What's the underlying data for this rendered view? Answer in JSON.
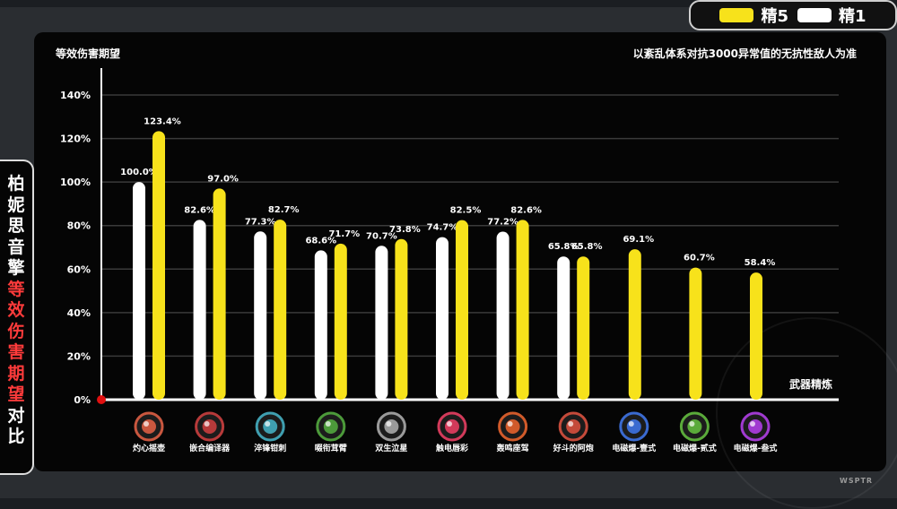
{
  "legend": {
    "items": [
      {
        "label": "精5",
        "color": "#f7e21b"
      },
      {
        "label": "精1",
        "color": "#ffffff"
      }
    ]
  },
  "side_title": {
    "segments": [
      {
        "text": "柏妮思音擎",
        "color": "#ffffff"
      },
      {
        "text": "等效伤害期望",
        "color": "#ff3b3b"
      },
      {
        "text": "对比",
        "color": "#ffffff"
      }
    ]
  },
  "brand": "WSPTR",
  "chart_data": {
    "type": "bar",
    "ylabel": "等效伤害期望",
    "xlabel": "武器精炼",
    "subtitle": "以紊乱体系对抗3000异常值的无抗性敌人为准",
    "ylim": [
      0,
      150
    ],
    "yticks": [
      0,
      20,
      40,
      60,
      80,
      100,
      120,
      140
    ],
    "grid": true,
    "categories": [
      "灼心摇壶",
      "嵌合编译器",
      "淬锋钳刺",
      "啜衔茸臂",
      "双生泣星",
      "触电唇彩",
      "轰鸣座驾",
      "好斗的阿炮",
      "电磁爆-壹式",
      "电磁爆-贰式",
      "电磁爆-叁式"
    ],
    "series": [
      {
        "name": "精1",
        "color": "#ffffff",
        "values": [
          100.0,
          82.6,
          77.3,
          68.6,
          70.7,
          74.7,
          77.2,
          65.8,
          null,
          null,
          null
        ],
        "labels": [
          "100.0%",
          "82.6%",
          "77.3%",
          "68.6%",
          "70.7%",
          "74.7%",
          "77.2%",
          "65.8%",
          null,
          null,
          null
        ]
      },
      {
        "name": "精5",
        "color": "#f7e21b",
        "values": [
          123.4,
          97.0,
          82.7,
          71.7,
          73.8,
          82.5,
          82.6,
          65.8,
          69.1,
          60.7,
          58.4
        ],
        "labels": [
          "123.4%",
          "97.0%",
          "82.7%",
          "71.7%",
          "73.8%",
          "82.5%",
          "82.6%",
          "65.8%",
          "69.1%",
          "60.7%",
          "58.4%"
        ]
      }
    ],
    "icons": [
      {
        "name": "rattle-icon",
        "color": "#c9573f"
      },
      {
        "name": "compiler-icon",
        "color": "#b73a3a"
      },
      {
        "name": "claw-icon",
        "color": "#3f9fb0"
      },
      {
        "name": "plant-icon",
        "color": "#4c9a3a"
      },
      {
        "name": "twin-star-icon",
        "color": "#9a9a9a"
      },
      {
        "name": "lipstick-icon",
        "color": "#d23a5a"
      },
      {
        "name": "engine-icon",
        "color": "#d05a2a"
      },
      {
        "name": "cannon-icon",
        "color": "#c44a3a"
      },
      {
        "name": "emp-1-icon",
        "color": "#3a6ad0"
      },
      {
        "name": "emp-2-icon",
        "color": "#5aaa3a"
      },
      {
        "name": "emp-3-icon",
        "color": "#a03ad0"
      }
    ]
  }
}
